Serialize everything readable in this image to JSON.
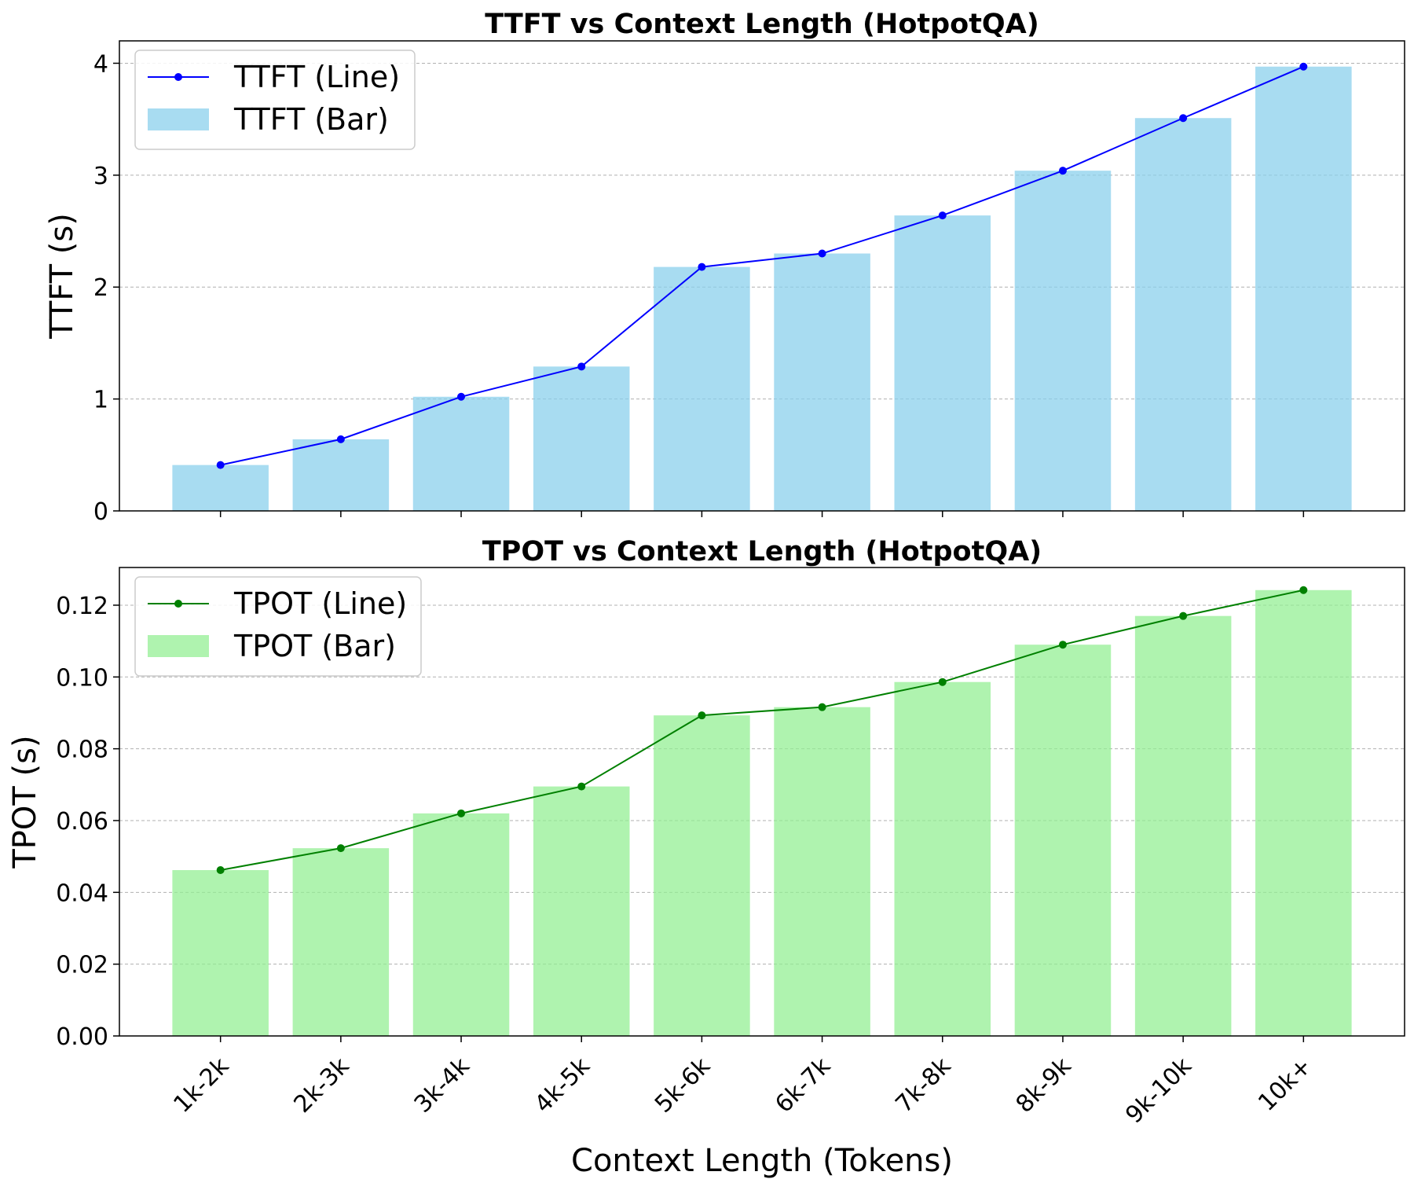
{
  "chart_data": [
    {
      "type": "bar",
      "title": "TTFT vs Context Length (HotpotQA)",
      "xlabel": "",
      "ylabel": "TTFT (s)",
      "categories": [
        "1k-2k",
        "2k-3k",
        "3k-4k",
        "4k-5k",
        "5k-6k",
        "6k-7k",
        "7k-8k",
        "8k-9k",
        "9k-10k",
        "10k+"
      ],
      "ylim": [
        0,
        4.2
      ],
      "yticks": [
        {
          "value": 0,
          "label": "0"
        },
        {
          "value": 1,
          "label": "1"
        },
        {
          "value": 2,
          "label": "2"
        },
        {
          "value": 3,
          "label": "3"
        },
        {
          "value": 4,
          "label": "4"
        }
      ],
      "grid": "y",
      "legend_position": "top-left",
      "series": [
        {
          "name": "TTFT (Line)",
          "kind": "line",
          "color": "#0000ff",
          "values": [
            0.41,
            0.64,
            1.02,
            1.29,
            2.18,
            2.3,
            2.64,
            3.04,
            3.51,
            3.97
          ]
        },
        {
          "name": "TTFT (Bar)",
          "kind": "bar",
          "color": "#87ceeb",
          "values": [
            0.41,
            0.64,
            1.02,
            1.29,
            2.18,
            2.3,
            2.64,
            3.04,
            3.51,
            3.97
          ]
        }
      ]
    },
    {
      "type": "bar",
      "title": "TPOT vs Context Length (HotpotQA)",
      "xlabel": "Context Length (Tokens)",
      "ylabel": "TPOT (s)",
      "categories": [
        "1k-2k",
        "2k-3k",
        "3k-4k",
        "4k-5k",
        "5k-6k",
        "6k-7k",
        "7k-8k",
        "8k-9k",
        "9k-10k",
        "10k+"
      ],
      "ylim": [
        0,
        0.1305
      ],
      "yticks": [
        {
          "value": 0,
          "label": "0.00"
        },
        {
          "value": 0.02,
          "label": "0.02"
        },
        {
          "value": 0.04,
          "label": "0.04"
        },
        {
          "value": 0.06,
          "label": "0.06"
        },
        {
          "value": 0.08,
          "label": "0.08"
        },
        {
          "value": 0.1,
          "label": "0.10"
        },
        {
          "value": 0.12,
          "label": "0.12"
        }
      ],
      "grid": "y",
      "legend_position": "top-left",
      "series": [
        {
          "name": "TPOT (Line)",
          "kind": "line",
          "color": "#008000",
          "values": [
            0.0462,
            0.0523,
            0.062,
            0.0695,
            0.0893,
            0.0916,
            0.0986,
            0.109,
            0.117,
            0.1242
          ]
        },
        {
          "name": "TPOT (Bar)",
          "kind": "bar",
          "color": "#90ee90",
          "values": [
            0.0462,
            0.0523,
            0.062,
            0.0695,
            0.0893,
            0.0916,
            0.0986,
            0.109,
            0.117,
            0.1242
          ]
        }
      ]
    }
  ]
}
